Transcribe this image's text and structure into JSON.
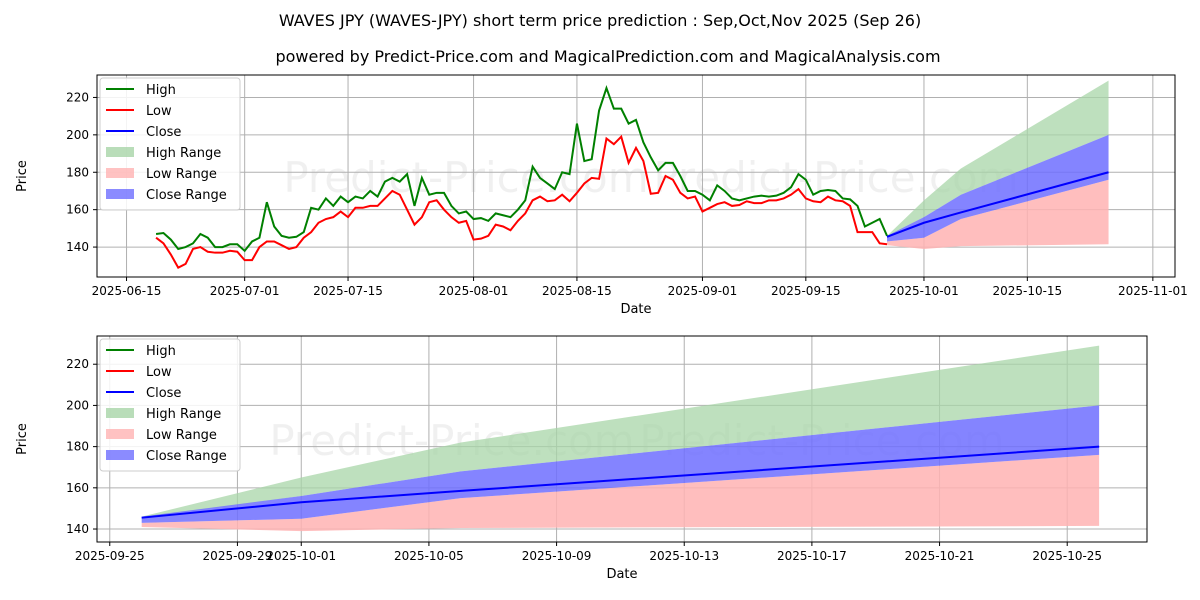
{
  "title": "WAVES JPY (WAVES-JPY) short term price prediction : Sep,Oct,Nov 2025 (Sep 26)",
  "subtitle": "powered by Predict-Price.com and MagicalPrediction.com and MagicalAnalysis.com",
  "watermark": "Predict-Price.com",
  "colors": {
    "high": "#008000",
    "low": "#ff0000",
    "close": "#0000ff",
    "high_range": "#a8d5a8",
    "low_range": "#ffb3b3",
    "close_range": "#6e6eff"
  },
  "chart_data": [
    {
      "type": "line",
      "xlabel": "Date",
      "ylabel": "Price",
      "xlim": [
        "2025-06-11",
        "2025-11-04"
      ],
      "ylim": [
        124,
        232
      ],
      "xticks": [
        "2025-06-15",
        "2025-07-01",
        "2025-07-15",
        "2025-08-01",
        "2025-08-15",
        "2025-09-01",
        "2025-09-15",
        "2025-10-01",
        "2025-10-15",
        "2025-11-01"
      ],
      "yticks": [
        140,
        160,
        180,
        200,
        220
      ],
      "grid": true,
      "legend": "top-left",
      "legend_labels": [
        "High",
        "Low",
        "Close",
        "High Range",
        "Low Range",
        "Close Range"
      ],
      "history_start": "2025-06-19",
      "high": [
        147,
        147.5,
        144,
        139,
        140,
        142,
        147,
        145,
        140,
        140,
        141.5,
        141.5,
        138,
        143,
        145,
        164,
        151,
        146,
        145,
        145.5,
        148,
        161,
        160,
        166,
        162,
        167,
        164,
        167,
        166,
        170,
        167,
        175,
        177,
        175,
        179,
        162,
        177,
        168,
        169,
        169,
        162,
        158,
        159,
        155,
        155.5,
        154,
        158,
        157,
        156,
        160,
        165,
        183,
        177,
        174,
        171,
        180,
        179,
        206,
        186,
        187,
        213,
        225,
        214,
        214,
        206,
        208,
        196,
        188,
        181,
        185,
        185,
        178,
        170,
        170,
        168,
        165,
        173,
        170,
        166,
        165,
        166,
        167,
        167.5,
        167,
        167.5,
        169,
        172,
        179,
        176,
        168,
        170,
        170.5,
        170,
        166,
        165.5,
        162,
        151,
        153,
        155,
        146
      ],
      "low": [
        145,
        142,
        136,
        129,
        131,
        139,
        140,
        137.5,
        137,
        137,
        138,
        137.5,
        133,
        133,
        140,
        143,
        143,
        141,
        139,
        140,
        145,
        148,
        153,
        155,
        156,
        159,
        156,
        161,
        161,
        162,
        162,
        166,
        170,
        168,
        160,
        152,
        156,
        164,
        165,
        160,
        156,
        153,
        154,
        144,
        144.5,
        146,
        152,
        151,
        149,
        154,
        158,
        165,
        167,
        164.5,
        165,
        168,
        164.5,
        169,
        174,
        177,
        176.5,
        198,
        195,
        199,
        185,
        193,
        186,
        168.5,
        169,
        178,
        176,
        169,
        166,
        167,
        159,
        161,
        163,
        164,
        162,
        162.5,
        164.5,
        163.5,
        163.5,
        165,
        165,
        166,
        168,
        171,
        166,
        164.5,
        164,
        167,
        165,
        164.5,
        162,
        148,
        148,
        148,
        142,
        141.5
      ],
      "forecast": {
        "dates": [
          "2025-09-26",
          "2025-10-01",
          "2025-10-06",
          "2025-10-26"
        ],
        "close": [
          145.5,
          153,
          158.5,
          180
        ],
        "high_range": [
          [
            145.5,
            146
          ],
          [
            156,
            165
          ],
          [
            168,
            182
          ],
          [
            200,
            229
          ]
        ],
        "close_range": [
          [
            143,
            146
          ],
          [
            145,
            156
          ],
          [
            155,
            168
          ],
          [
            176,
            200
          ]
        ],
        "low_range": [
          [
            141,
            143
          ],
          [
            139,
            145
          ],
          [
            140.5,
            155
          ],
          [
            141.5,
            176
          ]
        ]
      }
    },
    {
      "type": "line",
      "xlabel": "Date",
      "ylabel": "Price",
      "xlim": [
        "2025-09-24.6",
        "2025-10-27.5"
      ],
      "ylim": [
        133.7,
        233.7
      ],
      "xticks": [
        "2025-09-25",
        "2025-09-29",
        "2025-10-01",
        "2025-10-05",
        "2025-10-09",
        "2025-10-13",
        "2025-10-17",
        "2025-10-21",
        "2025-10-25"
      ],
      "yticks": [
        140,
        160,
        180,
        200,
        220
      ],
      "grid": true,
      "legend": "top-left",
      "legend_labels": [
        "High",
        "Low",
        "Close",
        "High Range",
        "Low Range",
        "Close Range"
      ]
    }
  ]
}
